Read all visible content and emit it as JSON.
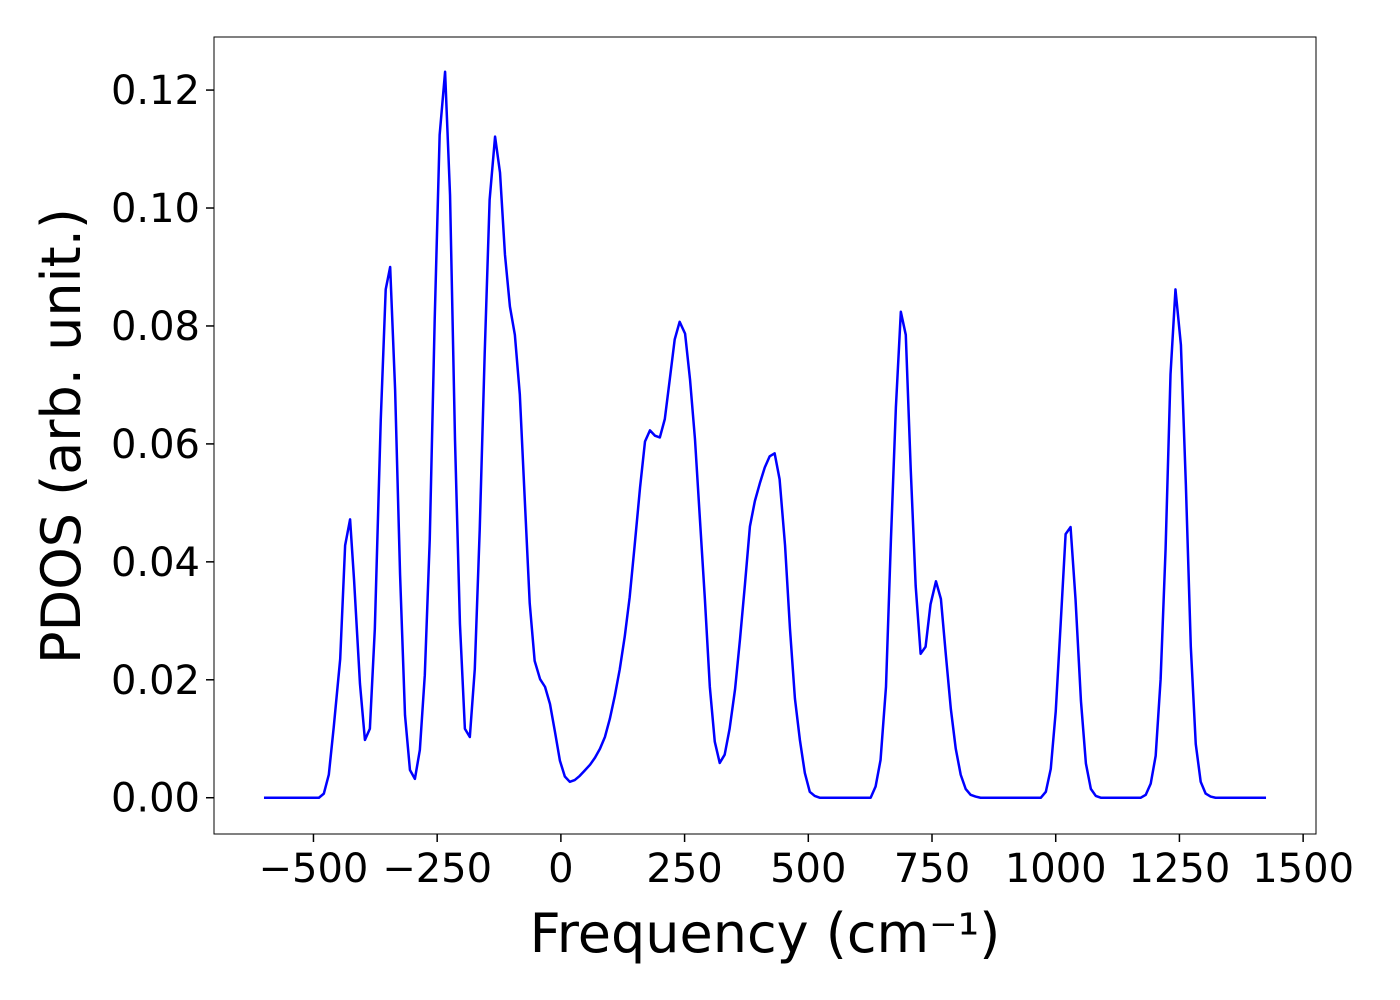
{
  "chart_data": {
    "type": "line",
    "xlabel": "Frequency (cm⁻¹)",
    "ylabel": "PDOS (arb. unit.)",
    "xlim": [
      -701,
      1526
    ],
    "ylim": [
      -0.00615,
      0.129
    ],
    "xticks": [
      {
        "value": -500,
        "label": "−500"
      },
      {
        "value": -250,
        "label": "−250"
      },
      0,
      250,
      500,
      750,
      1000,
      1250,
      1500
    ],
    "yticks": [
      {
        "value": 0,
        "label": "0.00"
      },
      {
        "value": 0.02,
        "label": "0.02"
      },
      {
        "value": 0.04,
        "label": "0.04"
      },
      {
        "value": 0.06,
        "label": "0.06"
      },
      {
        "value": 0.08,
        "label": "0.08"
      },
      {
        "value": 0.1,
        "label": "0.10"
      },
      {
        "value": 0.12,
        "label": "0.12"
      }
    ],
    "grid": false,
    "series": [
      {
        "color": "#0000ff",
        "x": [
          -600,
          -489,
          -479,
          -469,
          -459,
          -446,
          -436,
          -426,
          -418,
          -406,
          -396,
          -386,
          -376,
          -364,
          -354,
          -345,
          -335,
          -325,
          -315,
          -305,
          -295,
          -285,
          -275,
          -265,
          -255,
          -245,
          -234,
          -224,
          -214,
          -204,
          -194,
          -184,
          -174,
          -164,
          -154,
          -144,
          -133,
          -123,
          -113,
          -103,
          -93,
          -83,
          -73,
          -63,
          -53,
          -42,
          -32,
          -22,
          -12,
          -2,
          8,
          18,
          28,
          38,
          48,
          59,
          69,
          79,
          89,
          99,
          109,
          119,
          129,
          139,
          149,
          160,
          170,
          180,
          190,
          200,
          210,
          220,
          230,
          240,
          251,
          261,
          271,
          281,
          291,
          301,
          311,
          321,
          331,
          341,
          352,
          362,
          372,
          382,
          392,
          402,
          412,
          422,
          432,
          442,
          453,
          463,
          473,
          483,
          493,
          503,
          513,
          523,
          626,
          636,
          646,
          657,
          667,
          677,
          687,
          697,
          707,
          717,
          727,
          737,
          747,
          758,
          768,
          778,
          788,
          798,
          808,
          818,
          828,
          838,
          848,
          970,
          980,
          990,
          1000,
          1010,
          1020,
          1030,
          1040,
          1051,
          1061,
          1071,
          1081,
          1091,
          1172,
          1182,
          1192,
          1202,
          1212,
          1222,
          1232,
          1242,
          1253,
          1263,
          1273,
          1283,
          1293,
          1303,
          1313,
          1323,
          1425
        ],
        "values": [
          0,
          0,
          0.0007,
          0.0039,
          0.012,
          0.0235,
          0.0428,
          0.0472,
          0.037,
          0.0193,
          0.0098,
          0.0117,
          0.0286,
          0.0641,
          0.0862,
          0.09,
          0.0692,
          0.0379,
          0.014,
          0.0047,
          0.0032,
          0.0081,
          0.0208,
          0.0438,
          0.0811,
          0.1124,
          0.1231,
          0.1022,
          0.0608,
          0.0295,
          0.0117,
          0.0103,
          0.0218,
          0.0455,
          0.0752,
          0.1014,
          0.1121,
          0.106,
          0.0921,
          0.0833,
          0.0785,
          0.0684,
          0.0506,
          0.033,
          0.0232,
          0.0201,
          0.0188,
          0.0159,
          0.0112,
          0.0063,
          0.0036,
          0.0027,
          0.003,
          0.0037,
          0.0046,
          0.0056,
          0.0068,
          0.0083,
          0.0103,
          0.0134,
          0.0173,
          0.0218,
          0.0273,
          0.034,
          0.0427,
          0.0526,
          0.0604,
          0.0623,
          0.0614,
          0.0611,
          0.0642,
          0.0709,
          0.0777,
          0.0807,
          0.0787,
          0.0709,
          0.0608,
          0.0472,
          0.0337,
          0.0188,
          0.0095,
          0.0059,
          0.0073,
          0.0117,
          0.0184,
          0.0269,
          0.0362,
          0.046,
          0.0503,
          0.0533,
          0.056,
          0.0579,
          0.0584,
          0.054,
          0.0428,
          0.0286,
          0.0168,
          0.0098,
          0.0042,
          0.001,
          0.0003,
          0,
          0,
          0.0019,
          0.0064,
          0.0188,
          0.0438,
          0.0662,
          0.0824,
          0.0785,
          0.0557,
          0.0359,
          0.0244,
          0.0256,
          0.0328,
          0.0367,
          0.0337,
          0.0242,
          0.0151,
          0.0083,
          0.0039,
          0.0015,
          0.0005,
          0.0002,
          0,
          0,
          0.001,
          0.0049,
          0.0146,
          0.0295,
          0.0447,
          0.0459,
          0.0337,
          0.0164,
          0.0058,
          0.0015,
          0.0003,
          0,
          0,
          0.0005,
          0.0024,
          0.0071,
          0.0201,
          0.0421,
          0.0718,
          0.0862,
          0.0768,
          0.0531,
          0.0256,
          0.0091,
          0.0027,
          0.0007,
          0.0002,
          0,
          0
        ]
      }
    ]
  }
}
